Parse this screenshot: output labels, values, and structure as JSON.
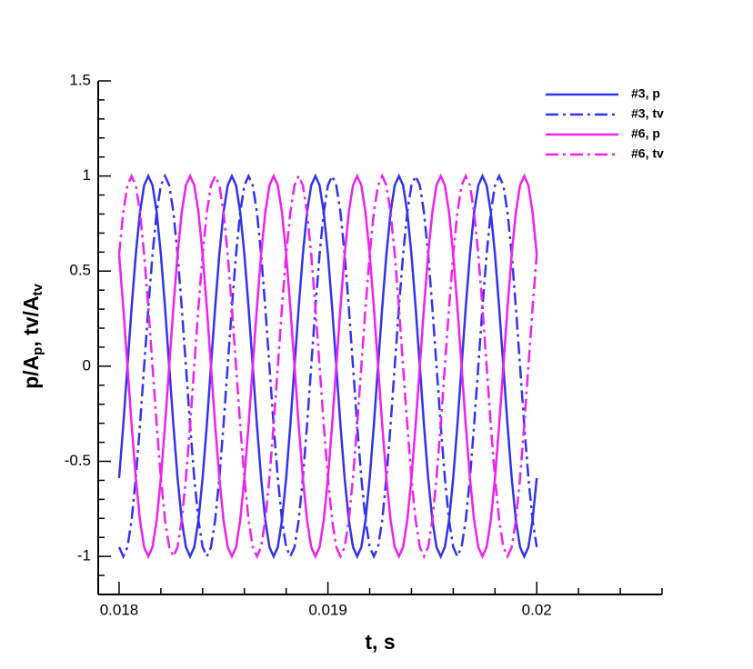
{
  "chart_data": {
    "type": "line",
    "xlabel": "t, s",
    "ylabel": [
      "p/A",
      "p",
      ", tv/A",
      "tv"
    ],
    "xlim": [
      0.0179,
      0.0206
    ],
    "ylim": [
      -1.2,
      1.5
    ],
    "xticks": [
      0.018,
      0.019,
      0.02
    ],
    "yticks": [
      -1,
      -0.5,
      0,
      0.5,
      1,
      1.5
    ],
    "xminorticks": [
      0.0182,
      0.0184,
      0.0186,
      0.0188,
      0.0192,
      0.0194,
      0.0196,
      0.0198,
      0.0202,
      0.0204,
      0.0206
    ],
    "yminorticks": [
      -1.1,
      -0.9,
      -0.8,
      -0.7,
      -0.6,
      -0.4,
      -0.3,
      -0.2,
      -0.1,
      0.1,
      0.2,
      0.3,
      0.4,
      0.6,
      0.7,
      0.8,
      0.9,
      1.1,
      1.2,
      1.3,
      1.4
    ],
    "legend": "upper right",
    "x": [
      0.018,
      0.01802,
      0.01804,
      0.01806,
      0.01808,
      0.0181,
      0.01812,
      0.01814,
      0.01816,
      0.01818,
      0.0182,
      0.01822,
      0.01824,
      0.01826,
      0.01828,
      0.0183,
      0.01832,
      0.01834,
      0.01836,
      0.01838,
      0.0184,
      0.01842,
      0.01844,
      0.01846,
      0.01848,
      0.0185,
      0.01852,
      0.01854,
      0.01856,
      0.01858,
      0.0186,
      0.01862,
      0.01864,
      0.01866,
      0.01868,
      0.0187,
      0.01872,
      0.01874,
      0.01876,
      0.01878,
      0.0188,
      0.01882,
      0.01884,
      0.01886,
      0.01888,
      0.0189,
      0.01892,
      0.01894,
      0.01896,
      0.01898,
      0.019,
      0.01902,
      0.01904,
      0.01906,
      0.01908,
      0.0191,
      0.01912,
      0.01914,
      0.01916,
      0.01918,
      0.0192,
      0.01922,
      0.01924,
      0.01926,
      0.01928,
      0.0193,
      0.01932,
      0.01934,
      0.01936,
      0.01938,
      0.0194,
      0.01942,
      0.01944,
      0.01946,
      0.01948,
      0.0195,
      0.01952,
      0.01954,
      0.01956,
      0.01958,
      0.0196,
      0.01962,
      0.01964,
      0.01966,
      0.01968,
      0.0197,
      0.01972,
      0.01974,
      0.01976,
      0.01978,
      0.0198,
      0.01982,
      0.01984,
      0.01986,
      0.01988,
      0.0199,
      0.01992,
      0.01994,
      0.01996,
      0.01998,
      0.02
    ],
    "series": [
      {
        "name": "#3, p",
        "color": "#3333ee",
        "dash": "solid",
        "values": [
          -0.588,
          -0.309,
          0,
          0.309,
          0.588,
          0.809,
          0.951,
          1,
          0.951,
          0.809,
          0.588,
          0.309,
          0,
          -0.309,
          -0.588,
          -0.809,
          -0.951,
          -1,
          -0.951,
          -0.809,
          -0.588,
          -0.309,
          0,
          0.309,
          0.588,
          0.809,
          0.951,
          1,
          0.951,
          0.809,
          0.588,
          0.309,
          0,
          -0.309,
          -0.588,
          -0.809,
          -0.951,
          -1,
          -0.951,
          -0.809,
          -0.588,
          -0.309,
          0,
          0.309,
          0.588,
          0.809,
          0.951,
          1,
          0.951,
          0.809,
          0.588,
          0.309,
          0,
          -0.309,
          -0.588,
          -0.809,
          -0.951,
          -1,
          -0.951,
          -0.809,
          -0.588,
          -0.309,
          0,
          0.309,
          0.588,
          0.809,
          0.951,
          1,
          0.951,
          0.809,
          0.588,
          0.309,
          0,
          -0.309,
          -0.588,
          -0.809,
          -0.951,
          -1,
          -0.951,
          -0.809,
          -0.588,
          -0.309,
          0,
          0.309,
          0.588,
          0.809,
          0.951,
          1,
          0.951,
          0.809,
          0.588,
          0.309,
          0,
          -0.309,
          -0.588,
          -0.809,
          -0.951,
          -1,
          -0.951,
          -0.809,
          -0.588
        ]
      },
      {
        "name": "#3, tv",
        "color": "#3333ee",
        "dash": "dashdot",
        "values": [
          -0.951,
          -1,
          -0.951,
          -0.809,
          -0.588,
          -0.309,
          0,
          0.309,
          0.588,
          0.809,
          0.951,
          1,
          0.951,
          0.809,
          0.588,
          0.309,
          0,
          -0.309,
          -0.588,
          -0.809,
          -0.951,
          -1,
          -0.951,
          -0.809,
          -0.588,
          -0.309,
          0,
          0.309,
          0.588,
          0.809,
          0.951,
          1,
          0.951,
          0.809,
          0.588,
          0.309,
          0,
          -0.309,
          -0.588,
          -0.809,
          -0.951,
          -1,
          -0.951,
          -0.809,
          -0.588,
          -0.309,
          0,
          0.309,
          0.588,
          0.809,
          0.951,
          1,
          0.951,
          0.809,
          0.588,
          0.309,
          0,
          -0.309,
          -0.588,
          -0.809,
          -0.951,
          -1,
          -0.951,
          -0.809,
          -0.588,
          -0.309,
          0,
          0.309,
          0.588,
          0.809,
          0.951,
          1,
          0.951,
          0.809,
          0.588,
          0.309,
          0,
          -0.309,
          -0.588,
          -0.809,
          -0.951,
          -1,
          -0.951,
          -0.809,
          -0.588,
          -0.309,
          0,
          0.309,
          0.588,
          0.809,
          0.951,
          1,
          0.951,
          0.809,
          0.588,
          0.309,
          0,
          -0.309,
          -0.588,
          -0.809,
          -0.951
        ]
      },
      {
        "name": "#6, p",
        "color": "#ee22ee",
        "dash": "solid",
        "values": [
          0.588,
          0.309,
          0,
          -0.309,
          -0.588,
          -0.809,
          -0.951,
          -1,
          -0.951,
          -0.809,
          -0.588,
          -0.309,
          0,
          0.309,
          0.588,
          0.809,
          0.951,
          1,
          0.951,
          0.809,
          0.588,
          0.309,
          0,
          -0.309,
          -0.588,
          -0.809,
          -0.951,
          -1,
          -0.951,
          -0.809,
          -0.588,
          -0.309,
          0,
          0.309,
          0.588,
          0.809,
          0.951,
          1,
          0.951,
          0.809,
          0.588,
          0.309,
          0,
          -0.309,
          -0.588,
          -0.809,
          -0.951,
          -1,
          -0.951,
          -0.809,
          -0.588,
          -0.309,
          0,
          0.309,
          0.588,
          0.809,
          0.951,
          1,
          0.951,
          0.809,
          0.588,
          0.309,
          0,
          -0.309,
          -0.588,
          -0.809,
          -0.951,
          -1,
          -0.951,
          -0.809,
          -0.588,
          -0.309,
          0,
          0.309,
          0.588,
          0.809,
          0.951,
          1,
          0.951,
          0.809,
          0.588,
          0.309,
          0,
          -0.309,
          -0.588,
          -0.809,
          -0.951,
          -1,
          -0.951,
          -0.809,
          -0.588,
          -0.309,
          0,
          0.309,
          0.588,
          0.809,
          0.951,
          1,
          0.951,
          0.809,
          0.588
        ]
      },
      {
        "name": "#6, tv",
        "color": "#ee22ee",
        "dash": "dashdot",
        "values": [
          0.588,
          0.809,
          0.951,
          1,
          0.951,
          0.809,
          0.588,
          0.309,
          0,
          -0.309,
          -0.588,
          -0.809,
          -0.951,
          -1,
          -0.951,
          -0.809,
          -0.588,
          -0.309,
          0,
          0.309,
          0.588,
          0.809,
          0.951,
          1,
          0.951,
          0.809,
          0.588,
          0.309,
          0,
          -0.309,
          -0.588,
          -0.809,
          -0.951,
          -1,
          -0.951,
          -0.809,
          -0.588,
          -0.309,
          0,
          0.309,
          0.588,
          0.809,
          0.951,
          1,
          0.951,
          0.809,
          0.588,
          0.309,
          0,
          -0.309,
          -0.588,
          -0.809,
          -0.951,
          -1,
          -0.951,
          -0.809,
          -0.588,
          -0.309,
          0,
          0.309,
          0.588,
          0.809,
          0.951,
          1,
          0.951,
          0.809,
          0.588,
          0.309,
          0,
          -0.309,
          -0.588,
          -0.809,
          -0.951,
          -1,
          -0.951,
          -0.809,
          -0.588,
          -0.309,
          0,
          0.309,
          0.588,
          0.809,
          0.951,
          1,
          0.951,
          0.809,
          0.588,
          0.309,
          0,
          -0.309,
          -0.588,
          -0.809,
          -0.951,
          -1,
          -0.951,
          -0.809,
          -0.588,
          -0.309,
          0,
          0.309,
          0.588
        ]
      }
    ]
  }
}
